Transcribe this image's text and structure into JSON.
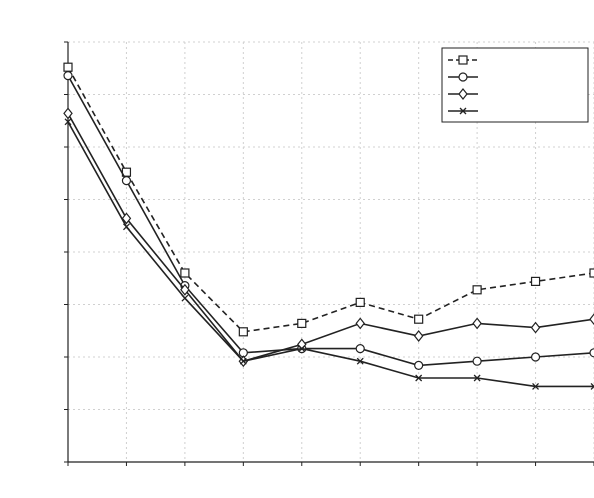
{
  "chart_data": {
    "type": "line",
    "title": "",
    "xlabel": "",
    "ylabel": "",
    "x": [
      1,
      2,
      3,
      4,
      5,
      6,
      7,
      8,
      9,
      10
    ],
    "xlim": [
      1,
      10
    ],
    "ylim": [
      0,
      1
    ],
    "grid": true,
    "legend_position": "top-right",
    "series": [
      {
        "name": "",
        "marker": "square",
        "dash": true,
        "values": [
          0.94,
          0.69,
          0.45,
          0.31,
          0.33,
          0.38,
          0.34,
          0.41,
          0.43,
          0.45
        ]
      },
      {
        "name": "",
        "marker": "circle",
        "dash": false,
        "values": [
          0.92,
          0.67,
          0.42,
          0.26,
          0.27,
          0.27,
          0.23,
          0.24,
          0.25,
          0.26
        ]
      },
      {
        "name": "",
        "marker": "diamond",
        "dash": false,
        "values": [
          0.83,
          0.58,
          0.41,
          0.24,
          0.28,
          0.33,
          0.3,
          0.33,
          0.32,
          0.34
        ]
      },
      {
        "name": "",
        "marker": "x",
        "dash": false,
        "values": [
          0.81,
          0.56,
          0.39,
          0.24,
          0.27,
          0.24,
          0.2,
          0.2,
          0.18,
          0.18
        ]
      }
    ],
    "colors": {
      "line": "#222222",
      "grid": "#d0d0d0",
      "frame": "#222222"
    }
  }
}
